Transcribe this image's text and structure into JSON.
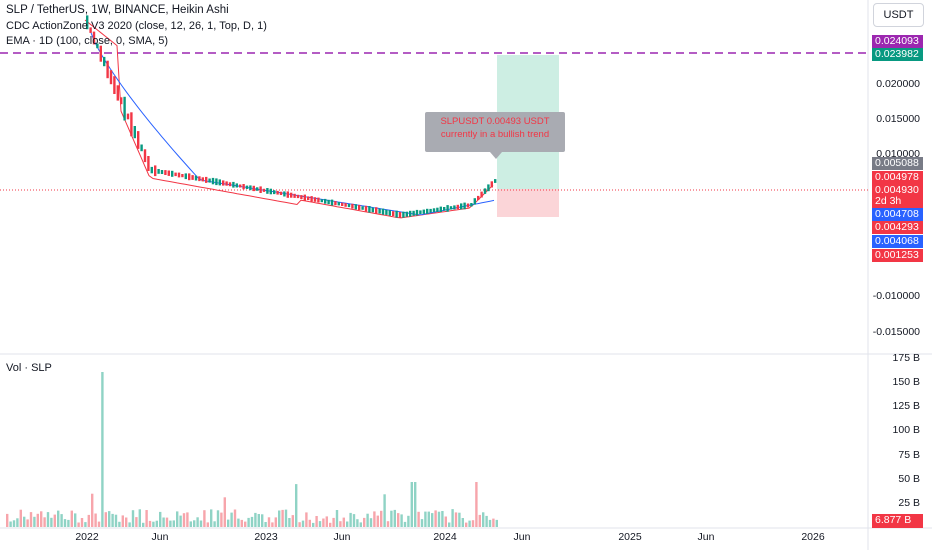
{
  "header": {
    "title": "SLP / TetherUS, 1W, BINANCE, Heikin Ashi",
    "indicator1": "CDC ActionZone V3 2020 (close, 12, 26, 1, Top, D, 1)",
    "indicator2": "EMA · 1D (100, close, 0, SMA, 5)",
    "currency": "USDT"
  },
  "volume_legend": "Vol · SLP",
  "price_axis": [
    "0.020000",
    "0.015000",
    "0.010000",
    "-0.010000",
    "-0.015000"
  ],
  "price_tags": [
    {
      "text": "0.024093",
      "color": "#9c27b0"
    },
    {
      "text": "0.023982",
      "color": "#089981"
    },
    {
      "text": "0.005088",
      "color": "#787b86"
    },
    {
      "text": "0.004978",
      "color": "#f23645"
    },
    {
      "text": "0.004930",
      "color": "#f23645"
    },
    {
      "text": "2d 3h",
      "color": "#f23645"
    },
    {
      "text": "0.004708",
      "color": "#2962ff"
    },
    {
      "text": "0.004293",
      "color": "#f23645"
    },
    {
      "text": "0.004068",
      "color": "#2962ff"
    },
    {
      "text": "0.001253",
      "color": "#f23645"
    }
  ],
  "volume_axis": [
    "175 B",
    "150 B",
    "125 B",
    "100 B",
    "75 B",
    "50 B",
    "25 B"
  ],
  "volume_tag": {
    "text": "6.877 B",
    "color": "#f23645"
  },
  "time_axis": [
    "2022",
    "Jun",
    "2023",
    "Jun",
    "2024",
    "Jun",
    "2025",
    "Jun",
    "2026"
  ],
  "tooltip": {
    "line1": "SLPUSDT 0.00493 USDT",
    "line2": "currently in a bullish trend"
  },
  "colors": {
    "up": "#089981",
    "down": "#f23645",
    "ema": "#2962ff",
    "dashed": "#9c27b0"
  }
}
